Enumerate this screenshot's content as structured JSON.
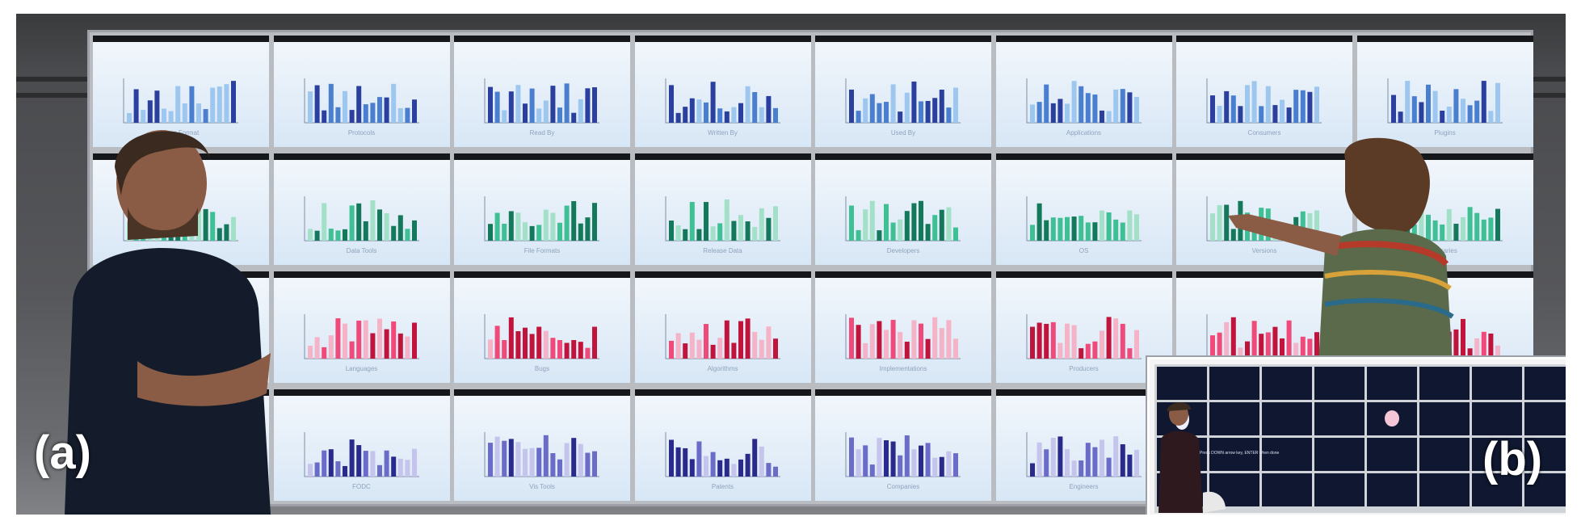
{
  "labels": {
    "a": "(a)",
    "b": "(b)",
    "inset_prompt": "Press DOWN arrow key, ENTER when done"
  },
  "colors": {
    "row0": [
      "#2a3f9e",
      "#4a7fd0",
      "#9ec7ef"
    ],
    "row1": [
      "#14795a",
      "#3fbf94",
      "#a3e0c8"
    ],
    "row2": [
      "#c0143c",
      "#f04a7a",
      "#f4b3c6"
    ],
    "row3": [
      "#2a2a8c",
      "#6b6bc8",
      "#c4c4ec"
    ]
  },
  "rows": [
    [
      "Data Format",
      "Protocols",
      "Read By",
      "Written By",
      "Used By",
      "Applications",
      "Consumers",
      "Plugins"
    ],
    [
      "",
      "Data Tools",
      "File Formats",
      "Release Data",
      "Developers",
      "OS",
      "Versions",
      "Libraries"
    ],
    [
      "",
      "Languages",
      "Bugs",
      "Algorithms",
      "Implementations",
      "Producers",
      "",
      ""
    ],
    [
      "",
      "FODC",
      "Vis Tools",
      "Patents",
      "Companies",
      "Engineers",
      "",
      ""
    ]
  ]
}
